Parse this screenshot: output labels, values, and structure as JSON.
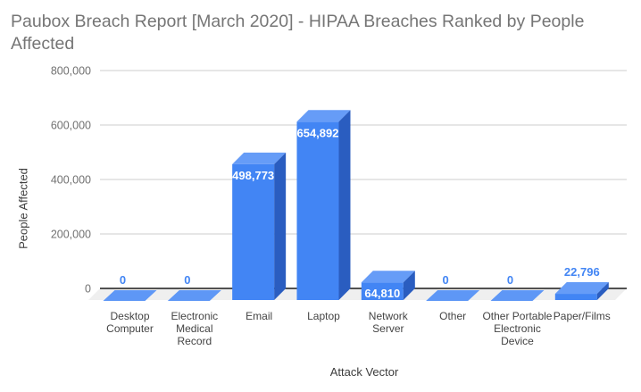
{
  "title": "Paubox Breach Report [March 2020] - HIPAA Breaches Ranked by People Affected",
  "chart_data": {
    "type": "bar",
    "style": "3d-column",
    "title": "Paubox Breach Report [March 2020] - HIPAA Breaches Ranked by People Affected",
    "xlabel": "Attack Vector",
    "ylabel": "People Affected",
    "categories": [
      "Desktop Computer",
      "Electronic Medical Record",
      "Email",
      "Laptop",
      "Network Server",
      "Other",
      "Other Portable Electronic Device",
      "Paper/Films"
    ],
    "values": [
      0,
      0,
      498773,
      654892,
      64810,
      0,
      0,
      22796
    ],
    "value_labels": [
      "0",
      "0",
      "498,773",
      "654,892",
      "64,810",
      "0",
      "0",
      "22,796"
    ],
    "ylim": [
      0,
      800000
    ],
    "yticks": [
      0,
      200000,
      400000,
      600000,
      800000
    ],
    "ytick_labels": [
      "0",
      "200,000",
      "400,000",
      "600,000",
      "800,000"
    ],
    "grid": true,
    "legend": "none"
  },
  "colors": {
    "background": "#ffffff",
    "bar_front": "#4285f4",
    "bar_top": "#669cf7",
    "bar_side": "#2a5dc0",
    "zero_slab": "#5e97f6",
    "label_inside": "#ffffff",
    "label_outside": "#4285f4",
    "gridline": "#cccccc",
    "axis_line": "#1a1a1a",
    "floor": "#efefef",
    "title_color": "#757575",
    "ytick_color": "#717171",
    "category_color": "#444444",
    "axis_title_color": "#3c3c3c"
  }
}
